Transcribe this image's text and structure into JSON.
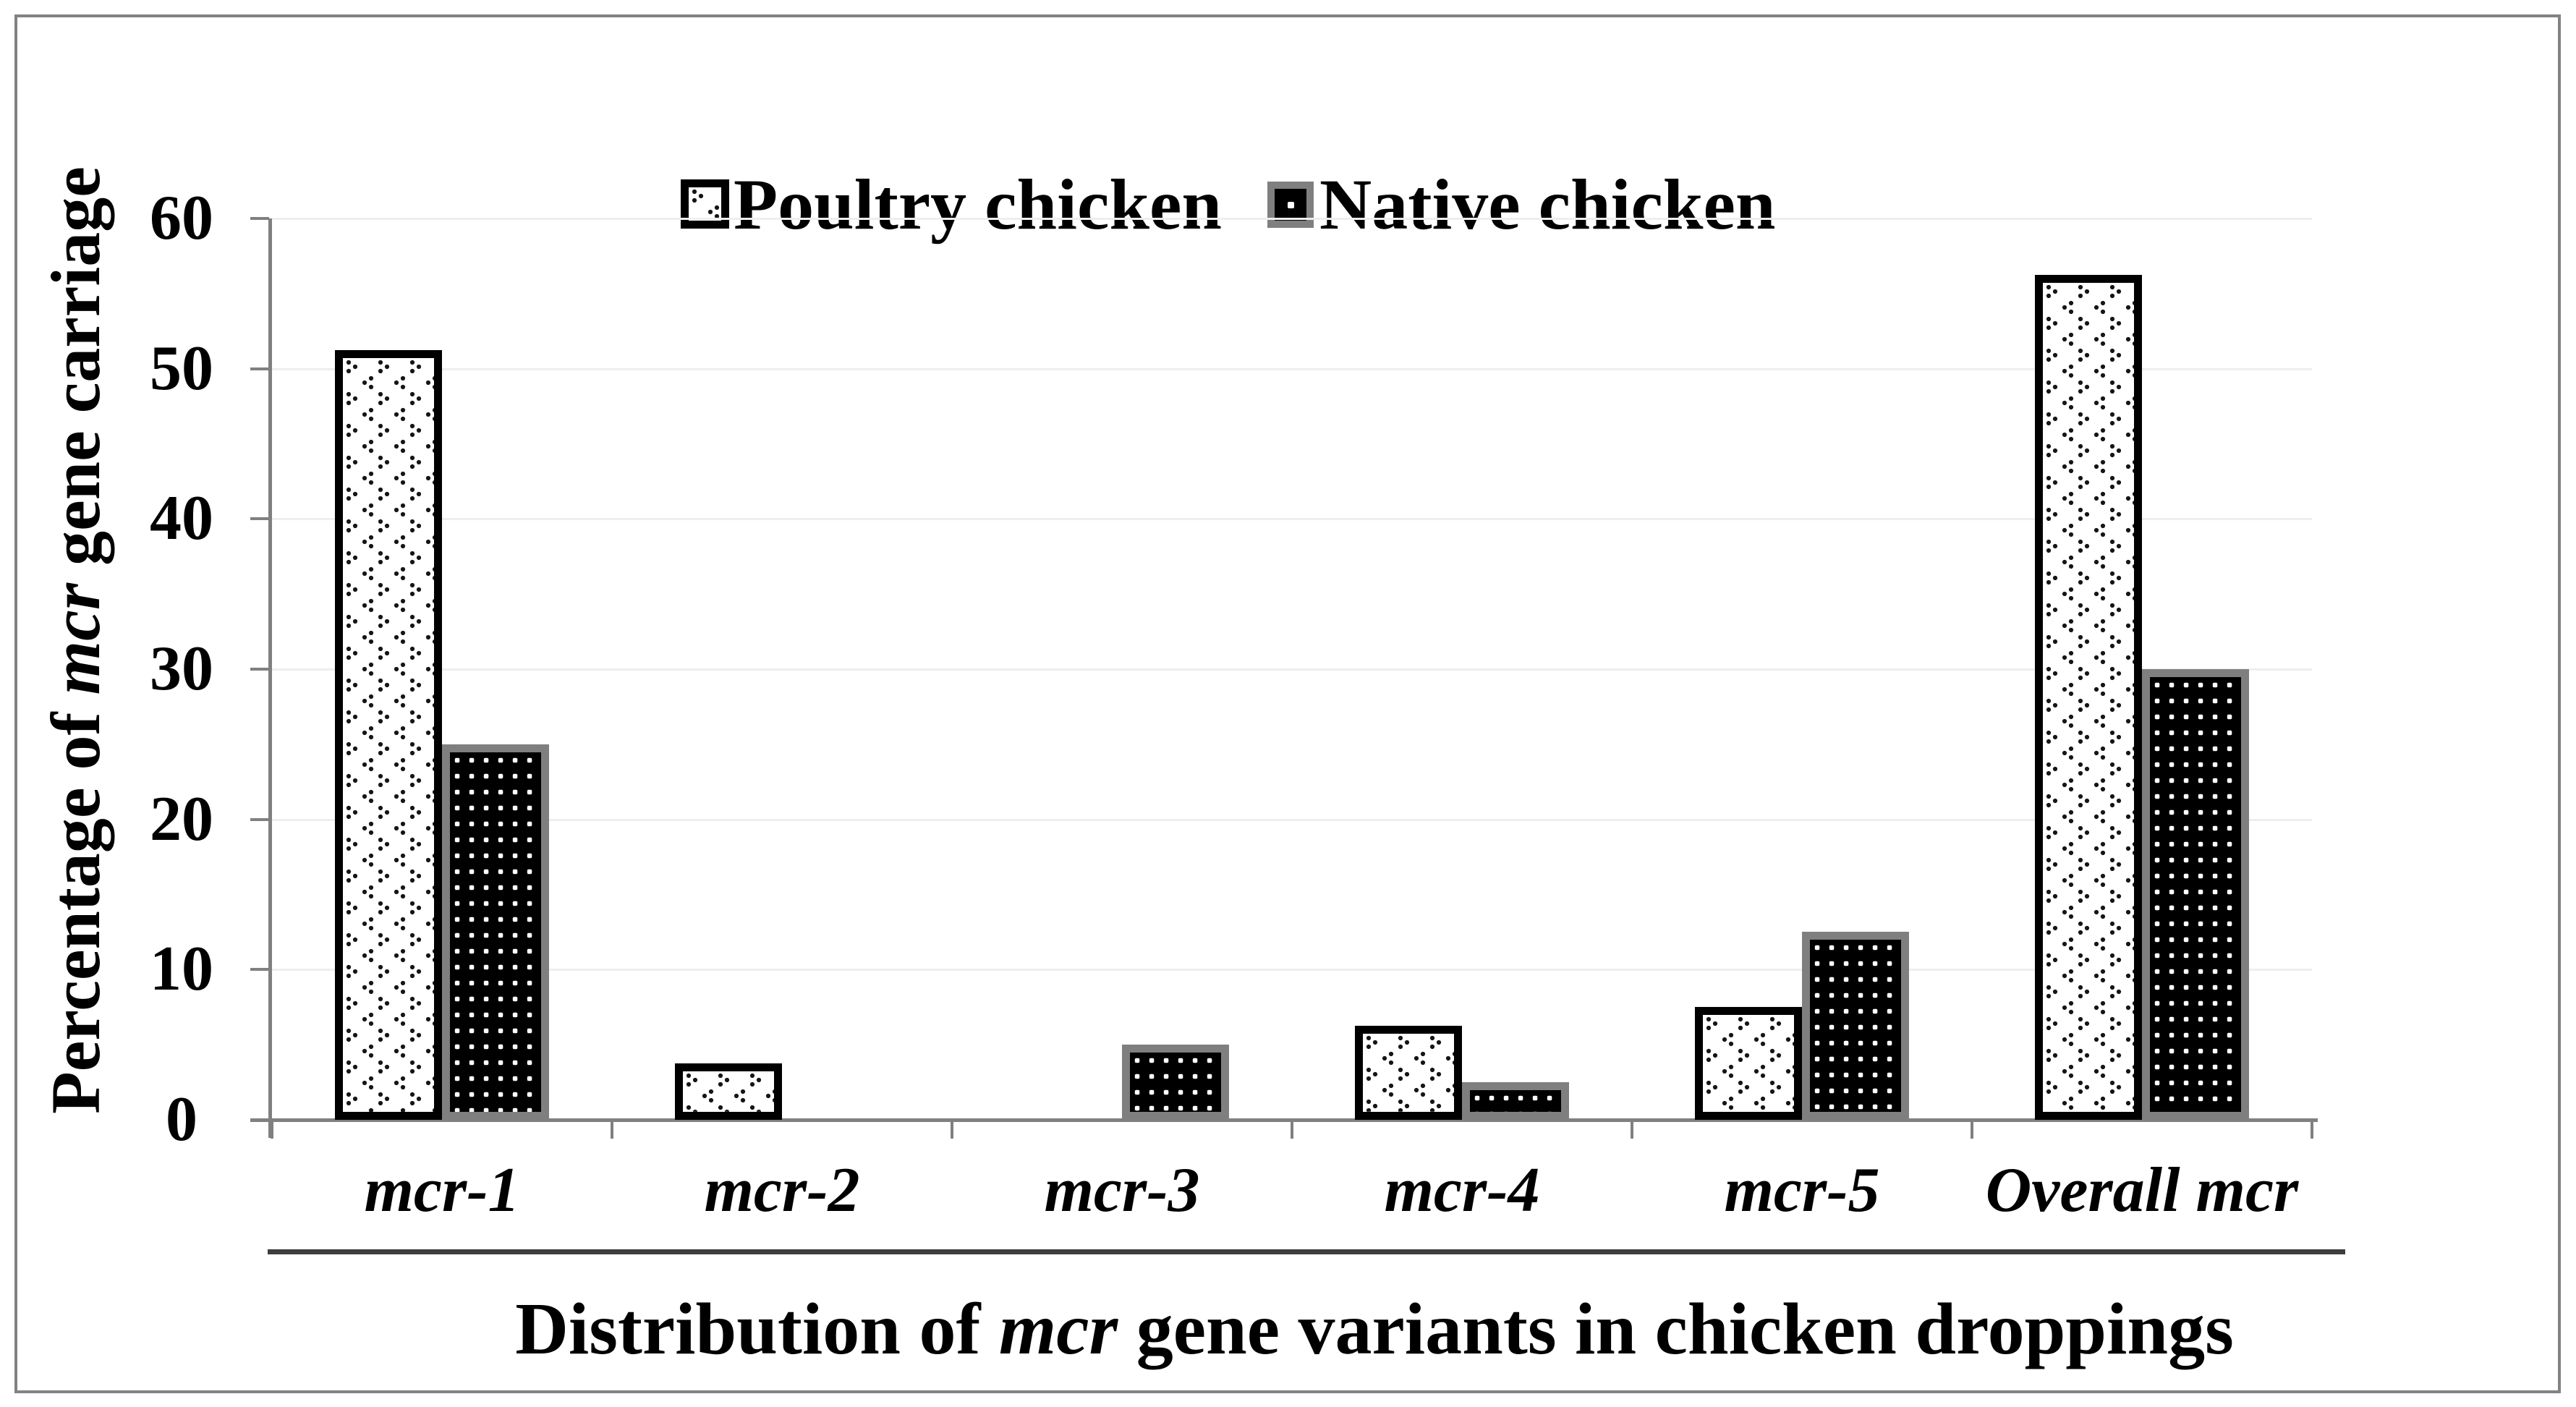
{
  "figure": {
    "background": "#ffffff",
    "frame_color": "#828282"
  },
  "legend": {
    "position": "top-center",
    "items": [
      {
        "label": "Poultry chicken",
        "swatch": "white-with-black-chevron-dots-pattern-black-border"
      },
      {
        "label": "Native chicken",
        "swatch": "black-with-white-dots-gray-border"
      }
    ]
  },
  "y_axis": {
    "title": "Percentage of mcr gene carriage",
    "title_segments": [
      {
        "text": "Percentage of ",
        "italic": false
      },
      {
        "text": "mcr",
        "italic": true
      },
      {
        "text": " gene carriage",
        "italic": false
      }
    ],
    "ticks": [
      "0",
      "10",
      "20",
      "30",
      "40",
      "50",
      "60"
    ]
  },
  "x_axis": {
    "title": "Distribution of mcr gene variants in chicken droppings",
    "title_segments": [
      {
        "text": "Distribution of ",
        "italic": false
      },
      {
        "text": "mcr",
        "italic": true
      },
      {
        "text": " gene variants in chicken droppings",
        "italic": false
      }
    ]
  },
  "chart_data": {
    "type": "bar",
    "title": "Distribution of mcr gene variants in chicken droppings",
    "xlabel": "Distribution of mcr gene variants in chicken droppings",
    "ylabel": "Percentage of mcr gene carriage",
    "categories": [
      "mcr-1",
      "mcr-2",
      "mcr-3",
      "mcr-4",
      "mcr-5",
      "Overall mcr"
    ],
    "series": [
      {
        "name": "Poultry chicken",
        "values": [
          51.25,
          3.75,
          0,
          6.25,
          7.5,
          56.25
        ],
        "fill": "#ffffff",
        "border_color": "#000000",
        "pattern": "black-chevron-dots-on-white"
      },
      {
        "name": "Native chicken",
        "values": [
          25,
          0,
          5,
          2.5,
          12.5,
          30
        ],
        "fill": "#000000",
        "border_color": "#7f7f7f",
        "pattern": "white-dots-on-black"
      }
    ],
    "ylim": [
      0,
      60
    ],
    "yticks": [
      0,
      10,
      20,
      30,
      40,
      50,
      60
    ],
    "grid": "horizontal very light gray gridlines at each 10",
    "gridline_color": "#eeeeee",
    "axis_color": "#808080",
    "legend_position": "top-center"
  }
}
